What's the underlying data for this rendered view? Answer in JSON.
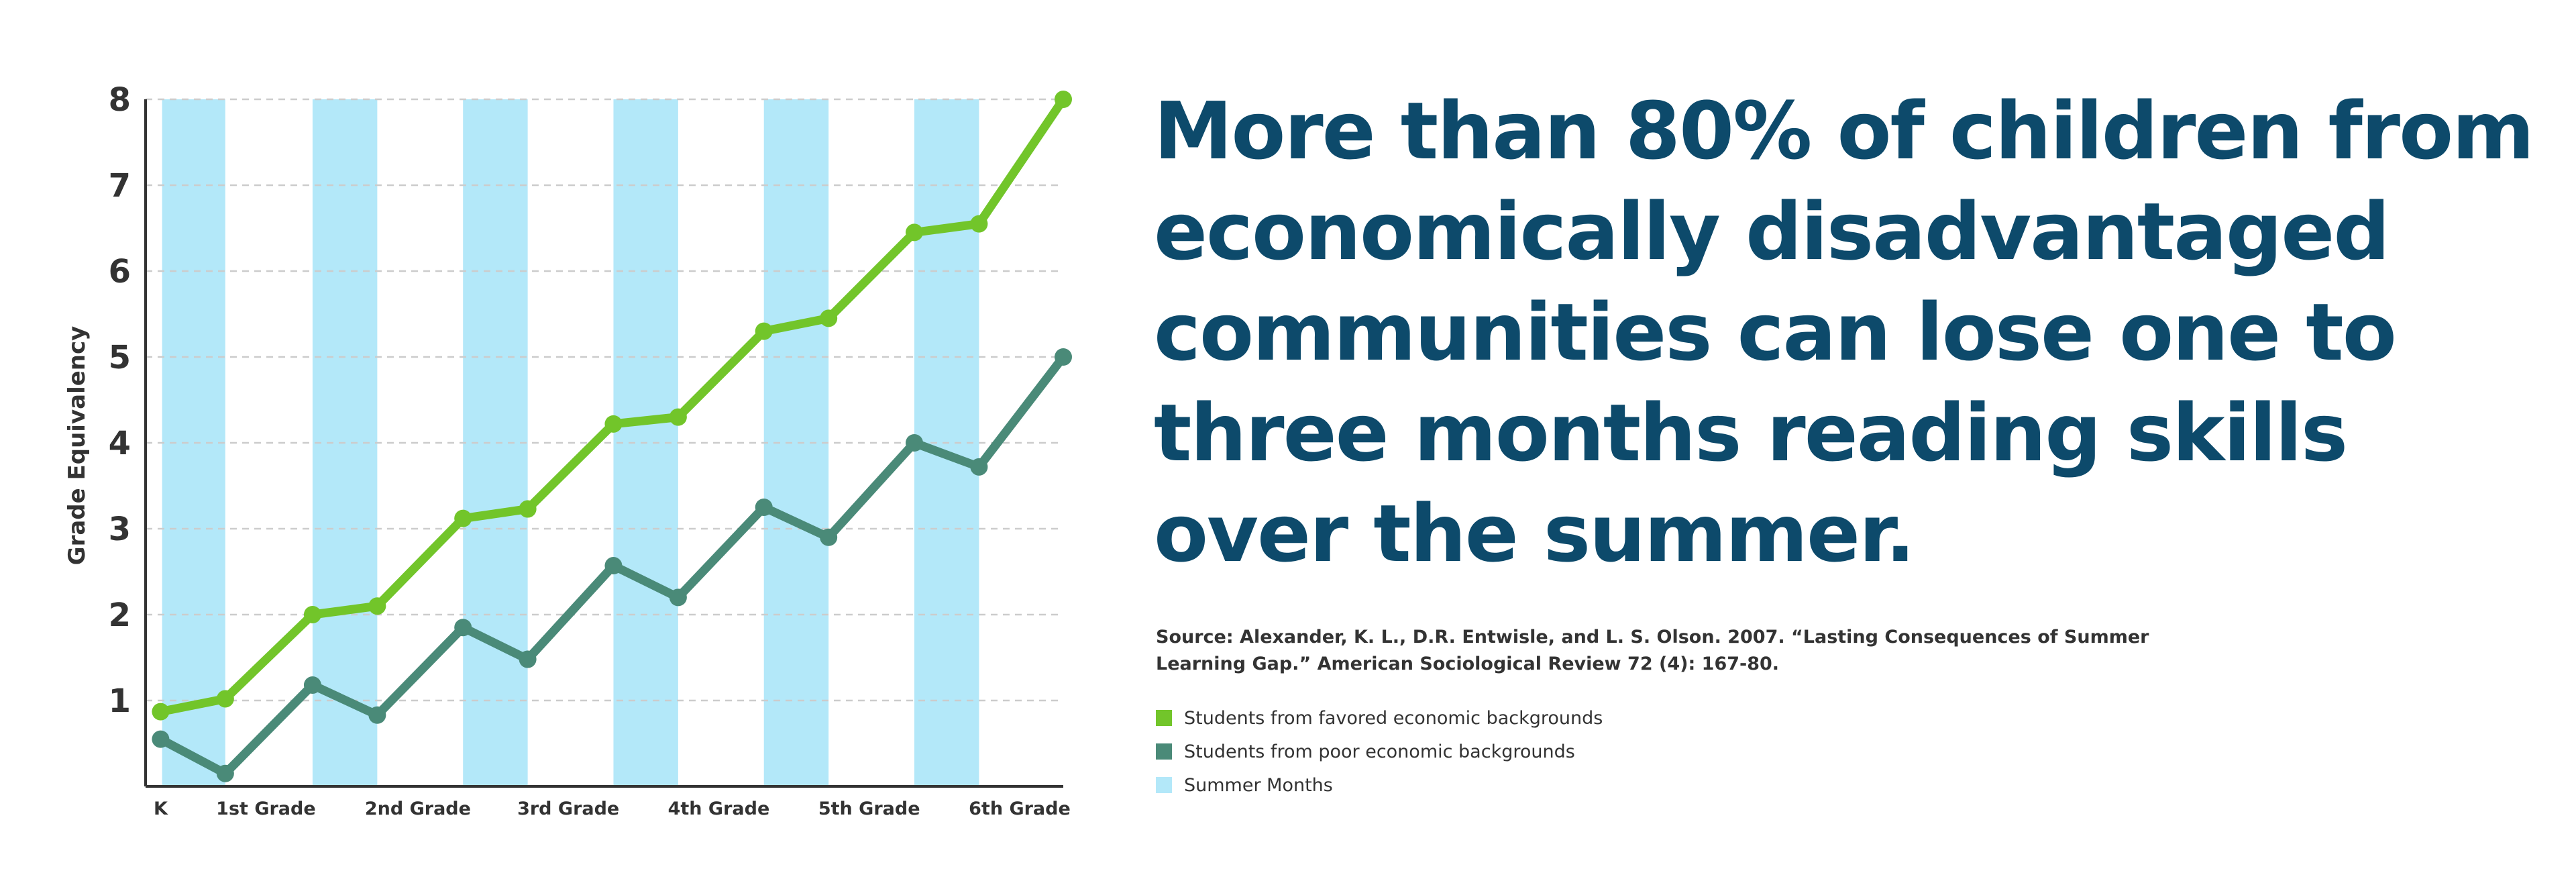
{
  "chart_data": {
    "type": "line",
    "ylabel": "Grade Equivalency",
    "x": [
      0,
      0.43,
      1.01,
      1.44,
      2.01,
      2.44,
      3.01,
      3.44,
      4.01,
      4.44,
      5.01,
      5.44,
      6.0
    ],
    "xlim": [
      -0.1,
      6.0
    ],
    "xticks": [
      {
        "value": 0,
        "label": "K"
      },
      {
        "value": 0.7,
        "label": "1st Grade"
      },
      {
        "value": 1.71,
        "label": "2nd Grade"
      },
      {
        "value": 2.71,
        "label": "3rd Grade"
      },
      {
        "value": 3.71,
        "label": "4th Grade"
      },
      {
        "value": 4.71,
        "label": "5th Grade"
      },
      {
        "value": 5.71,
        "label": "6th Grade"
      }
    ],
    "ylim": [
      0,
      8
    ],
    "yticks": [
      1,
      2,
      3,
      4,
      5,
      6,
      7,
      8
    ],
    "grid": true,
    "series": [
      {
        "name": "Students from favored economic backgrounds",
        "color": "#72c52a",
        "values": [
          0.87,
          1.02,
          2.0,
          2.1,
          3.12,
          3.23,
          4.22,
          4.3,
          5.3,
          5.45,
          6.45,
          6.55,
          8.0
        ]
      },
      {
        "name": "Students from poor economic backgrounds",
        "color": "#4a8a78",
        "values": [
          0.55,
          0.15,
          1.18,
          0.83,
          1.85,
          1.48,
          2.57,
          2.2,
          3.25,
          2.9,
          4.0,
          3.72,
          5.0
        ]
      }
    ],
    "bands": {
      "name": "Summer Months",
      "color": "#b3e8f9",
      "ranges": [
        [
          0.01,
          0.43
        ],
        [
          1.01,
          1.44
        ],
        [
          2.01,
          2.44
        ],
        [
          3.01,
          3.44
        ],
        [
          4.01,
          4.44
        ],
        [
          5.01,
          5.44
        ]
      ]
    },
    "title_lines": [
      "More than 80% of children from",
      "economically disadvantaged",
      "communities can lose one to",
      "three months reading skills",
      "over the summer."
    ],
    "source_lines": [
      "Source: Alexander, K. L., D.R. Entwisle, and L. S. Olson. 2007. “Lasting Consequences of Summer",
      "Learning Gap.” American Sociological Review 72 (4): 167-80."
    ]
  }
}
